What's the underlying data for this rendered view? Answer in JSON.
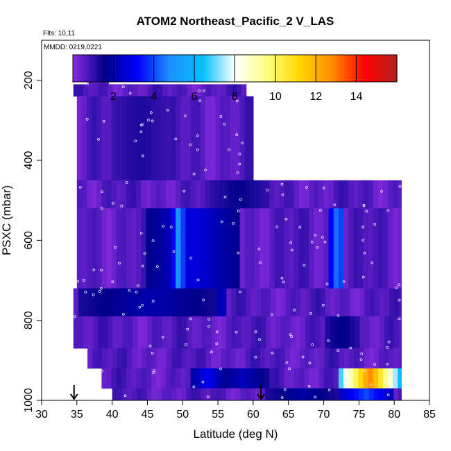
{
  "chart_data": {
    "type": "heatmap",
    "title": "ATOM2 Northeast_Pacific_2 V_LAS",
    "annotations": [
      "Flts: 10,11",
      "MMDD: 0219,0221"
    ],
    "xlabel": "Latitude (deg N)",
    "ylabel": "PSXC (mbar)",
    "xlim": [
      30,
      85
    ],
    "ylim": [
      1000,
      100
    ],
    "y_reversed": true,
    "x_ticks": [
      "30",
      "35",
      "40",
      "45",
      "50",
      "55",
      "60",
      "65",
      "70",
      "75",
      "80",
      "85"
    ],
    "y_ticks": [
      "200",
      "400",
      "600",
      "800",
      "1000"
    ],
    "colorbar": {
      "range": [
        0,
        16
      ],
      "ticks": [
        "2",
        "4",
        "6",
        "8",
        "10",
        "12",
        "14"
      ],
      "colors": [
        "#8a2be2",
        "#00008b",
        "#0000ff",
        "#1e90ff",
        "#00bfff",
        "#ffffff",
        "#ffff80",
        "#ffd700",
        "#ff8c00",
        "#ff0000",
        "#b22222"
      ]
    },
    "background_value": 0.6,
    "layers": [
      {
        "p": [
          180,
          210
        ],
        "lat_range": [
          36.5,
          39.5
        ]
      },
      {
        "p": [
          210,
          240
        ],
        "lat_range": [
          34.5,
          59
        ]
      },
      {
        "p": [
          240,
          450
        ],
        "lat_range": [
          35,
          60
        ]
      },
      {
        "p": [
          450,
          520
        ],
        "lat_range": [
          35,
          81
        ]
      },
      {
        "p": [
          520,
          720
        ],
        "lat_range": [
          35,
          81
        ]
      },
      {
        "p": [
          720,
          790
        ],
        "lat_range": [
          34.5,
          81
        ]
      },
      {
        "p": [
          790,
          870
        ],
        "lat_range": [
          34.5,
          81
        ]
      },
      {
        "p": [
          870,
          920
        ],
        "lat_range": [
          36.5,
          81
        ]
      },
      {
        "p": [
          920,
          970
        ],
        "lat_range": [
          38.5,
          81
        ]
      },
      {
        "p": [
          970,
          1000
        ],
        "lat_range": [
          40,
          81
        ]
      }
    ],
    "anomalies": [
      {
        "lat": [
          39,
          50
        ],
        "p": [
          240,
          300
        ],
        "value": 1.0
      },
      {
        "lat": [
          40,
          48
        ],
        "p": [
          330,
          380
        ],
        "value": 1.3
      },
      {
        "lat": [
          38,
          43
        ],
        "p": [
          370,
          430
        ],
        "value": 2.0
      },
      {
        "lat": [
          39.7,
          40.7
        ],
        "p": [
          375,
          430
        ],
        "value": 4.5
      },
      {
        "lat": [
          44,
          52
        ],
        "p": [
          380,
          420
        ],
        "value": 1.5
      },
      {
        "lat": [
          41,
          46
        ],
        "p": [
          435,
          480
        ],
        "value": 2.0
      },
      {
        "lat": [
          54,
          62
        ],
        "p": [
          450,
          510
        ],
        "value": 1.6
      },
      {
        "lat": [
          44,
          57
        ],
        "p": [
          550,
          620
        ],
        "value": 3.5
      },
      {
        "lat": [
          47,
          54
        ],
        "p": [
          560,
          615
        ],
        "value": 4.8
      },
      {
        "lat": [
          48.5,
          50.5
        ],
        "p": [
          570,
          640
        ],
        "value": 5.3
      },
      {
        "lat": [
          45,
          58
        ],
        "p": [
          620,
          660
        ],
        "value": 2.8
      },
      {
        "lat": [
          38,
          62
        ],
        "p": [
          690,
          745
        ],
        "value": 1.5
      },
      {
        "lat": [
          35,
          56
        ],
        "p": [
          745,
          790
        ],
        "value": 2.1
      },
      {
        "lat": [
          42,
          55
        ],
        "p": [
          790,
          830
        ],
        "value": 2.0
      },
      {
        "lat": [
          55,
          56
        ],
        "p": [
          710,
          800
        ],
        "value": 3.2
      },
      {
        "lat": [
          55,
          62
        ],
        "p": [
          920,
          970
        ],
        "value": 2.3
      },
      {
        "lat": [
          51,
          56
        ],
        "p": [
          925,
          965
        ],
        "value": 3.0
      },
      {
        "lat": [
          62,
          72
        ],
        "p": [
          970,
          1000
        ],
        "value": 2.0
      },
      {
        "lat": [
          70,
          73
        ],
        "p": [
          350,
          385
        ],
        "value": 1.8
      },
      {
        "lat": [
          70.5,
          72
        ],
        "p": [
          600,
          640
        ],
        "value": 3.5
      },
      {
        "lat": [
          71,
          73
        ],
        "p": [
          590,
          650
        ],
        "value": 5.0
      },
      {
        "lat": [
          70,
          75
        ],
        "p": [
          800,
          860
        ],
        "value": 1.7
      },
      {
        "lat": [
          72,
          80
        ],
        "p": [
          970,
          1000
        ],
        "value": 4.0
      },
      {
        "lat": [
          72,
          81
        ],
        "p": [
          920,
          970
        ],
        "value": 13.0
      }
    ],
    "markers": [
      {
        "lat": 34.6,
        "p": 1000,
        "type": "arrow"
      },
      {
        "lat": 61.1,
        "p": 1000,
        "type": "arrow"
      }
    ]
  }
}
